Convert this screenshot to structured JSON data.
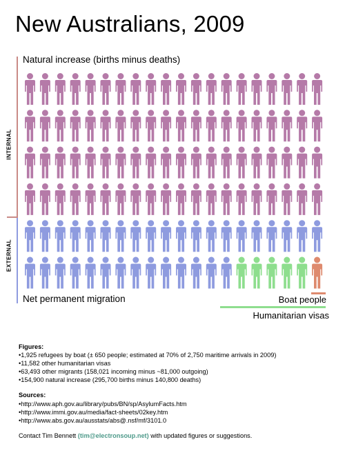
{
  "title": "New Australians, 2009",
  "labels": {
    "natural": "Natural increase (births minus deaths)",
    "net": "Net permanent migration",
    "boat": "Boat people",
    "humanitarian": "Humanitarian visas",
    "internal": "INTERNAL",
    "external": "EXTERNAL"
  },
  "colors": {
    "natural": "#b57aa8",
    "migrants": "#8e9bdf",
    "humanitarian": "#8ede8e",
    "boat": "#de8a6e",
    "internal_bar": "#c98a86",
    "external_bar": "#8e9bdf"
  },
  "chart_data": {
    "type": "pictogram",
    "grid_columns": 20,
    "categories": [
      {
        "name": "Natural increase",
        "icons": 80,
        "group": "INTERNAL"
      },
      {
        "name": "Other migrants",
        "icons": 34,
        "group": "EXTERNAL"
      },
      {
        "name": "Humanitarian visas",
        "icons": 5,
        "group": "EXTERNAL"
      },
      {
        "name": "Boat people",
        "icons": 1,
        "group": "EXTERNAL"
      }
    ]
  },
  "notes": {
    "figures_heading": "Figures:",
    "figures": [
      "1,925 refugees by boat (± 650 people; estimated at 70% of 2,750 maritime arrivals in 2009)",
      "11,582 other humanitarian visas",
      "63,493 other migrants (158,021 incoming minus ~81,000 outgoing)",
      "154,900 natural increase (295,700 births minus 140,800 deaths)"
    ],
    "sources_heading": "Sources:",
    "sources": [
      "http://www.aph.gov.au/library/pubs/BN/sp/AsylumFacts.htm",
      "http://www.immi.gov.au/media/fact-sheets/02key.htm",
      "http://www.abs.gov.au/ausstats/abs@.nsf/mf/3101.0"
    ],
    "contact_pre": "Contact Tim Bennett ",
    "contact_email": "(tim@electronsoup.net)",
    "contact_post": " with updated figures or suggestions."
  }
}
